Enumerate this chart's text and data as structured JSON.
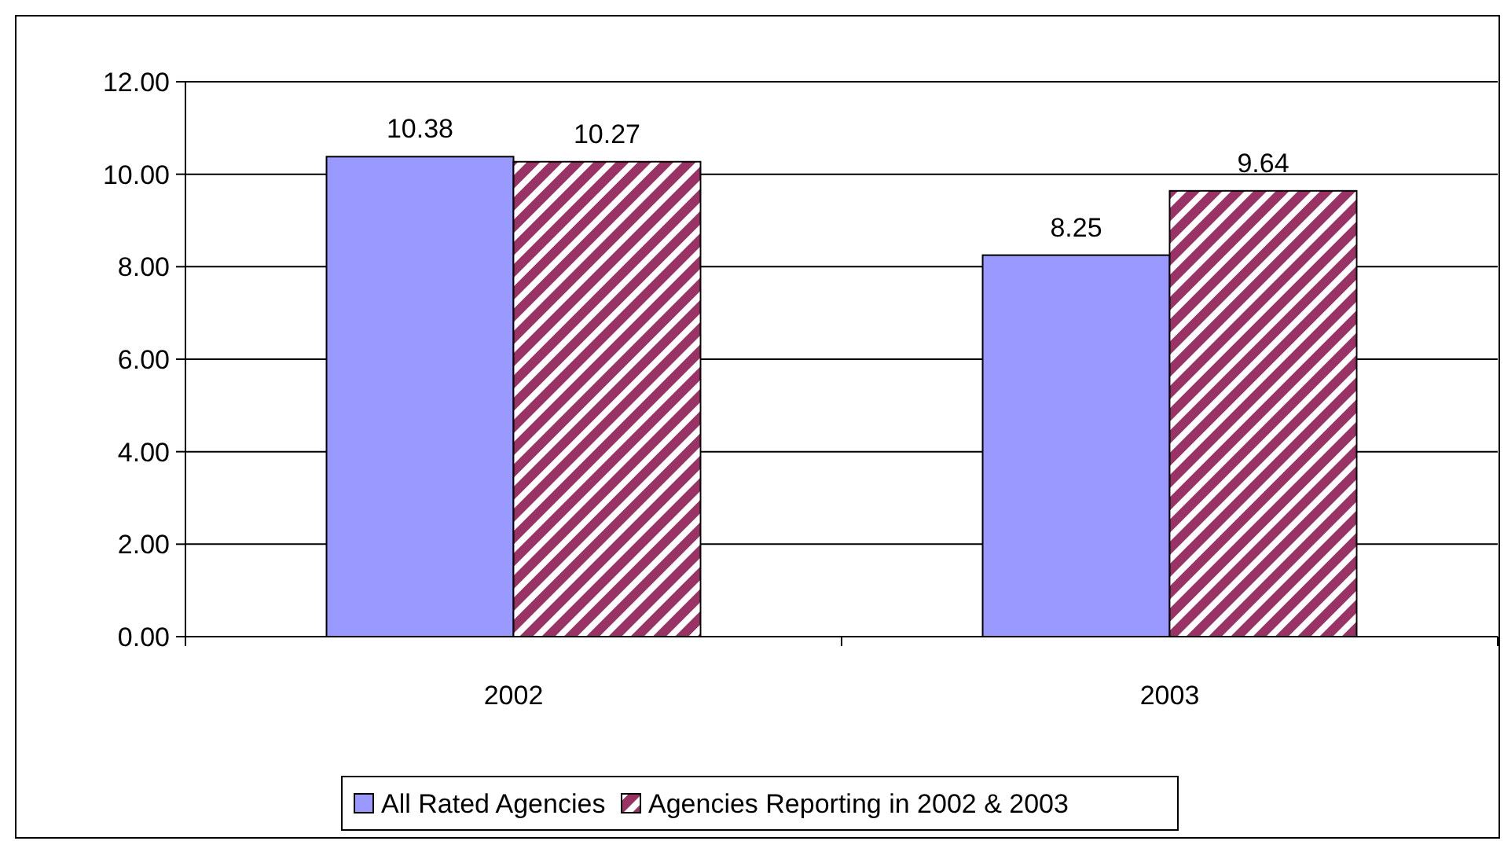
{
  "chart_data": {
    "type": "bar",
    "categories": [
      "2002",
      "2003"
    ],
    "series": [
      {
        "name": "All Rated Agencies",
        "color": "#9999ff",
        "values": [
          10.38,
          8.25
        ]
      },
      {
        "name": "Agencies Reporting in 2002 & 2003",
        "color": "#993366",
        "values": [
          10.27,
          9.64
        ]
      }
    ],
    "ylim": [
      0,
      12
    ],
    "yticks": [
      {
        "value": 0,
        "label": "0.00"
      },
      {
        "value": 2,
        "label": "2.00"
      },
      {
        "value": 4,
        "label": "4.00"
      },
      {
        "value": 6,
        "label": "6.00"
      },
      {
        "value": 8,
        "label": "8.00"
      },
      {
        "value": 10,
        "label": "10.00"
      },
      {
        "value": 12,
        "label": "12.00"
      }
    ],
    "grid": "y",
    "legend": "bottom",
    "data_labels": true
  }
}
